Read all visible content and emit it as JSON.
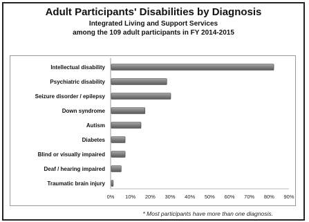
{
  "chart_data": {
    "type": "bar",
    "orientation": "horizontal",
    "title": "Adult Participants' Disabilities by Diagnosis",
    "subtitle_line1": "Integrated Living and Support Services",
    "subtitle_line2": "among  the 109 adult participants in FY 2014-2015",
    "categories": [
      "Intellectual disability",
      "Psychiatric disability",
      "Seizure disorder / epilepsy",
      "Down syndrome",
      "Autism",
      "Diabetes",
      "Blind or visually impaired",
      "Deaf / hearing impaired",
      "Traumatic brain injury"
    ],
    "values": [
      82,
      28,
      30,
      17,
      15,
      7,
      7,
      5,
      1
    ],
    "xlim": [
      0,
      90
    ],
    "xticks": [
      "0%",
      "10%",
      "20%",
      "30%",
      "40%",
      "50%",
      "60%",
      "70%",
      "80%",
      "90%"
    ],
    "xlabel": "",
    "ylabel": "",
    "grid": false,
    "bar_color": "#7f7f7f",
    "footnote": "* Most participants have more than one diagnosis."
  }
}
